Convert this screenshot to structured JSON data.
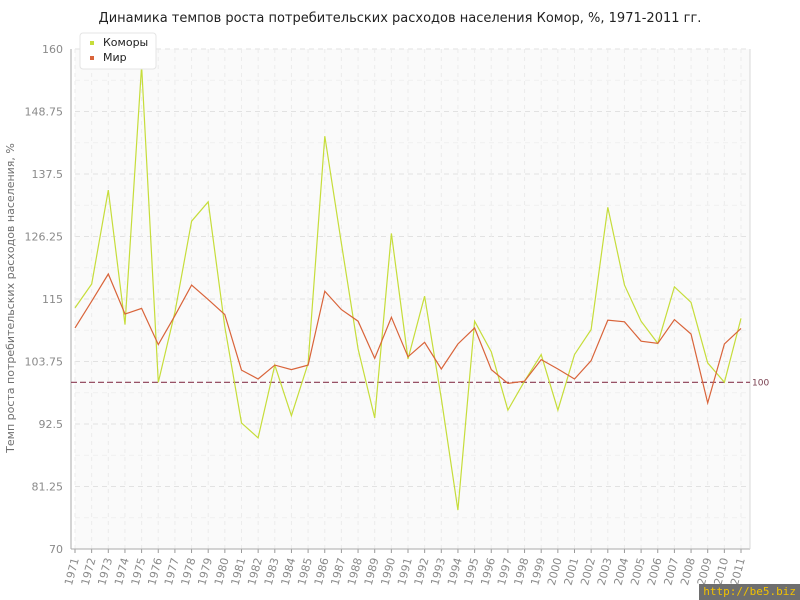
{
  "chart_data": {
    "type": "line",
    "title": "Динамика темпов роста потребительских расходов населения Комор, %, 1971-2011 гг.",
    "ylabel": "Темп роста потребительских расходов населения, %",
    "xlabel": "",
    "ylim": [
      70,
      160
    ],
    "yticks": [
      "70",
      "81.25",
      "92.5",
      "103.75",
      "115",
      "126.25",
      "137.5",
      "148.75",
      "160"
    ],
    "yticks_values": [
      70,
      81.25,
      92.5,
      103.75,
      115,
      126.25,
      137.5,
      148.75,
      160
    ],
    "x": [
      "1971",
      "1972",
      "1973",
      "1974",
      "1975",
      "1976",
      "1977",
      "1978",
      "1979",
      "1980",
      "1981",
      "1982",
      "1983",
      "1984",
      "1985",
      "1986",
      "1987",
      "1988",
      "1989",
      "1990",
      "1991",
      "1992",
      "1993",
      "1994",
      "1995",
      "1996",
      "1997",
      "1998",
      "1999",
      "2000",
      "2001",
      "2002",
      "2003",
      "2004",
      "2005",
      "2006",
      "2007",
      "2008",
      "2009",
      "2010",
      "2011"
    ],
    "series": [
      {
        "name": "Коморы",
        "color": "#c6dd3a",
        "values": [
          113.4,
          117.7,
          134.6,
          110.4,
          157.0,
          100.0,
          112.6,
          129.0,
          132.5,
          110.0,
          92.7,
          90.0,
          103.1,
          94.0,
          103.4,
          144.3,
          125.0,
          106.0,
          93.6,
          126.8,
          104.2,
          115.5,
          97.1,
          77.0,
          111.0,
          105.5,
          95.0,
          100.2,
          105.0,
          95.0,
          105.0,
          109.5,
          131.5,
          117.5,
          111.0,
          107.0,
          117.2,
          114.4,
          103.5,
          100.0,
          111.5
        ]
      },
      {
        "name": "Мир",
        "color": "#d9643a",
        "values": [
          109.8,
          114.6,
          119.5,
          112.3,
          113.3,
          106.8,
          112.0,
          117.5,
          114.9,
          112.2,
          102.2,
          100.6,
          103.1,
          102.3,
          103.1,
          116.4,
          113.1,
          111.0,
          104.3,
          111.7,
          104.6,
          107.2,
          102.4,
          106.9,
          109.8,
          102.3,
          99.8,
          100.2,
          104.1,
          102.4,
          100.6,
          103.9,
          111.2,
          110.9,
          107.4,
          107.0,
          111.3,
          108.7,
          96.3,
          106.9,
          109.7
        ]
      }
    ],
    "reference_line": {
      "value": 100,
      "label": "100",
      "color": "#8a3a52"
    },
    "legend": {
      "placement": "top-left"
    },
    "grid": true
  },
  "watermark": "http://be5.biz"
}
